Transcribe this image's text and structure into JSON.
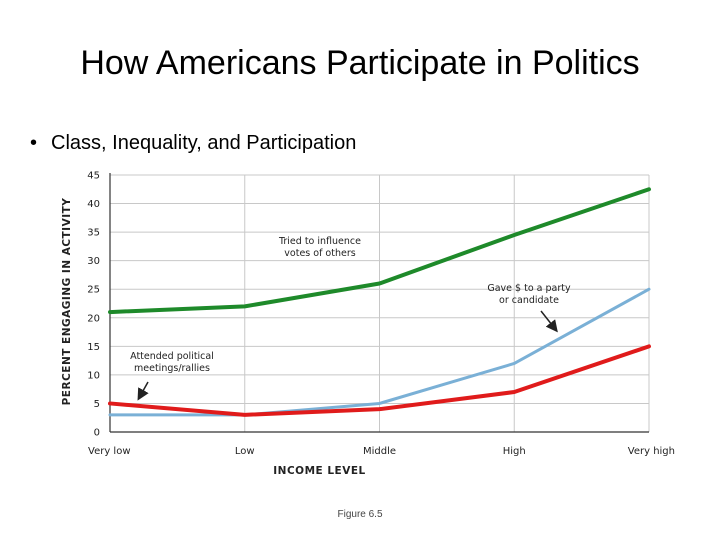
{
  "slide": {
    "title": "How Americans Participate in Politics",
    "bullet_text": "Class, Inequality, and Participation",
    "caption": "Figure 6.5"
  },
  "chart_data": {
    "type": "line",
    "title": "",
    "xlabel": "INCOME LEVEL",
    "ylabel": "PERCENT ENGAGING IN ACTIVITY",
    "categories": [
      "Very low",
      "Low",
      "Middle",
      "High",
      "Very high"
    ],
    "ylim": [
      0,
      45
    ],
    "yticks": [
      0,
      5,
      10,
      15,
      20,
      25,
      30,
      35,
      40,
      45
    ],
    "grid": true,
    "series": [
      {
        "name": "Tried to influence votes of others",
        "values": [
          21,
          22,
          26,
          34.5,
          42.5
        ],
        "color": "#1e8a2a"
      },
      {
        "name": "Gave $ to a party or candidate",
        "values": [
          3,
          3,
          5,
          12,
          25
        ],
        "color": "#7ab0d6"
      },
      {
        "name": "Attended political meetings/rallies",
        "values": [
          5,
          3,
          4,
          7,
          15
        ],
        "color": "#e01b1b"
      }
    ],
    "annotations": [
      {
        "lines": [
          "Tried to influence",
          "votes of others"
        ]
      },
      {
        "lines": [
          "Gave $ to a party",
          "or candidate"
        ]
      },
      {
        "lines": [
          "Attended political",
          "meetings/rallies"
        ]
      }
    ]
  }
}
